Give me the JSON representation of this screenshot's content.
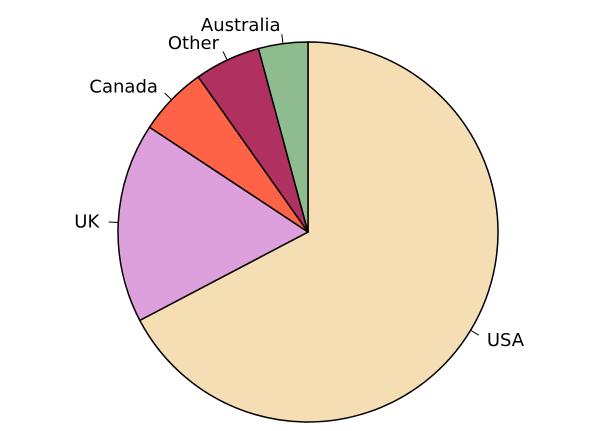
{
  "chart_data": {
    "type": "pie",
    "start": "top",
    "direction": "clockwise",
    "categories": [
      "USA",
      "UK",
      "Canada",
      "Other",
      "Australia"
    ],
    "values": [
      67.3,
      17.0,
      5.9,
      5.6,
      4.2
    ],
    "colors": [
      "#f5deb3",
      "#dda0dd",
      "#ff6347",
      "#b03060",
      "#8fbc8f"
    ],
    "labels": [
      "USA",
      "UK",
      "Canada",
      "Other",
      "Australia"
    ]
  }
}
